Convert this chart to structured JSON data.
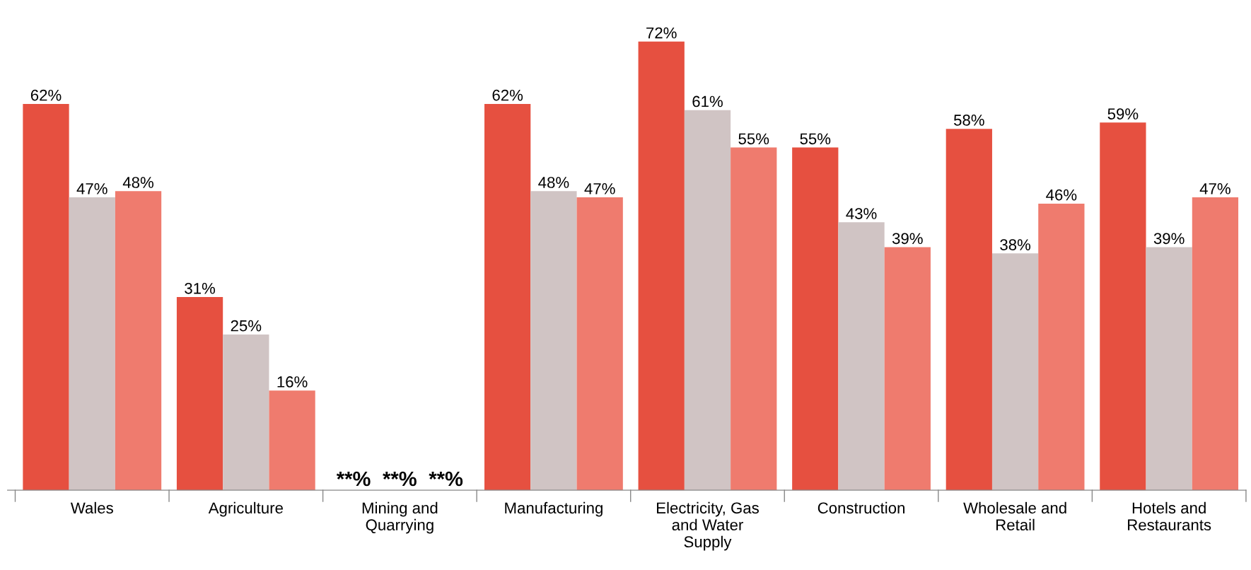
{
  "chart_data": {
    "type": "bar",
    "categories": [
      "Wales",
      "Agriculture",
      "Mining and\nQuarrying",
      "Manufacturing",
      "Electricity, Gas\nand Water\nSupply",
      "Construction",
      "Wholesale and\nRetail",
      "Hotels and\nRestaurants"
    ],
    "series": [
      {
        "color": "#e65040",
        "values": [
          62,
          31,
          null,
          62,
          72,
          55,
          58,
          59
        ],
        "value_labels": [
          "62%",
          "31%",
          "**%",
          "62%",
          "72%",
          "55%",
          "58%",
          "59%"
        ]
      },
      {
        "color": "#d0c4c4",
        "values": [
          47,
          25,
          null,
          48,
          61,
          43,
          38,
          39
        ],
        "value_labels": [
          "47%",
          "25%",
          "**%",
          "48%",
          "61%",
          "43%",
          "38%",
          "39%"
        ]
      },
      {
        "color": "#ef7b6e",
        "values": [
          48,
          16,
          null,
          47,
          55,
          39,
          46,
          47
        ],
        "value_labels": [
          "48%",
          "16%",
          "**%",
          "47%",
          "55%",
          "39%",
          "46%",
          "47%"
        ]
      }
    ],
    "grid": false,
    "legend": false
  }
}
